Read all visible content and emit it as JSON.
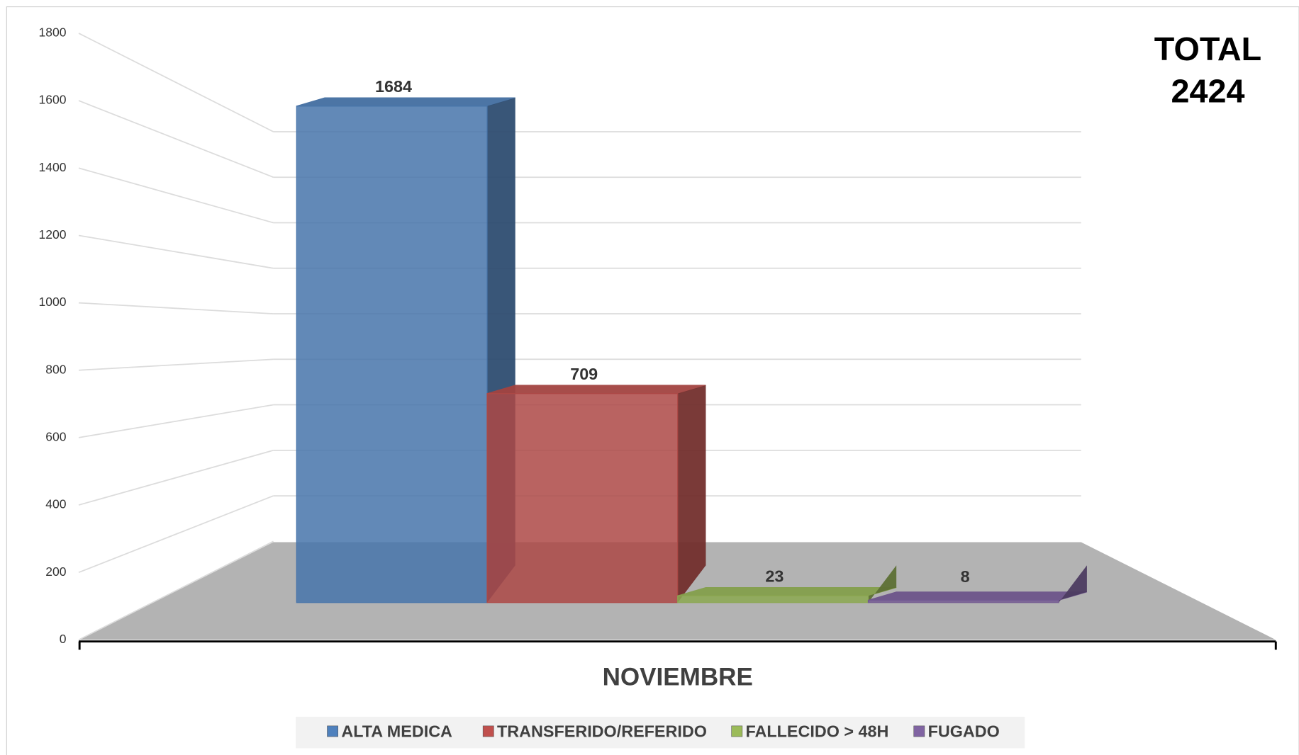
{
  "chart_data": {
    "type": "bar3d",
    "categories": [
      "NOVIEMBRE"
    ],
    "series": [
      {
        "name": "ALTA MEDICA",
        "color": "#4f81bd",
        "values": [
          1684
        ]
      },
      {
        "name": "TRANSFERIDO/REFERIDO",
        "color": "#c0504d",
        "values": [
          709
        ]
      },
      {
        "name": "FALLECIDO > 48H",
        "color": "#9bbb59",
        "values": [
          23
        ]
      },
      {
        "name": "FUGADO",
        "color": "#8064a2",
        "values": [
          8
        ]
      }
    ],
    "ylim": [
      0,
      1800
    ],
    "yticks": [
      0,
      200,
      400,
      600,
      800,
      1000,
      1200,
      1400,
      1600,
      1800
    ],
    "grid": true,
    "legend": "bottom",
    "annotations": [
      "TOTAL",
      "2424"
    ]
  }
}
